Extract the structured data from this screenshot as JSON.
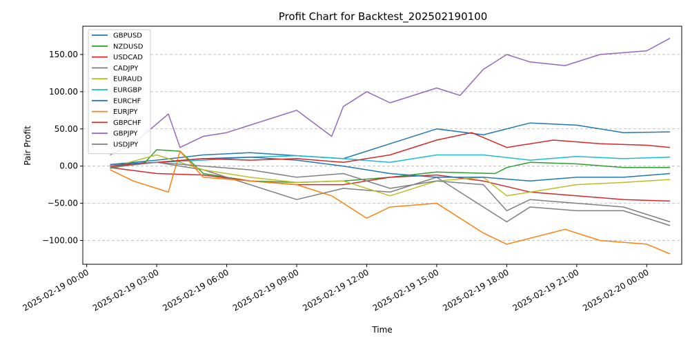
{
  "chart_data": {
    "type": "line",
    "title": "Profit Chart for Backtest_202502190100",
    "xlabel": "Time",
    "ylabel": "Pair Profit",
    "x_range": [
      "2025-02-18 23:50",
      "2025-02-20 01:30"
    ],
    "ylim": [
      -132,
      188
    ],
    "yticks": [
      -100,
      -50,
      0,
      50,
      100,
      150
    ],
    "ytick_labels": [
      "−100.00",
      "−50.00",
      "0.00",
      "50.00",
      "100.00",
      "150.00"
    ],
    "xticks": [
      "2025-02-19 00:00",
      "2025-02-19 03:00",
      "2025-02-19 06:00",
      "2025-02-19 09:00",
      "2025-02-19 12:00",
      "2025-02-19 15:00",
      "2025-02-19 18:00",
      "2025-02-19 21:00",
      "2025-02-20 00:00"
    ],
    "xtick_labels": [
      "2025-02-19 00:00",
      "2025-02-19 03:00",
      "2025-02-19 06:00",
      "2025-02-19 09:00",
      "2025-02-19 12:00",
      "2025-02-19 15:00",
      "2025-02-19 18:00",
      "2025-02-19 21:00",
      "2025-02-20 00:00"
    ],
    "grid": "y-dashed",
    "legend_position": "top-left",
    "series": [
      {
        "name": "GBPUSD",
        "color": "#1f77b4",
        "x": [
          "2025-02-19 01:00",
          "2025-02-19 03:00",
          "2025-02-19 05:00",
          "2025-02-19 07:00",
          "2025-02-19 09:00",
          "2025-02-19 11:00",
          "2025-02-19 13:00",
          "2025-02-19 15:00",
          "2025-02-19 17:00",
          "2025-02-19 19:00",
          "2025-02-19 21:00",
          "2025-02-19 23:00",
          "2025-02-20 01:00"
        ],
        "y": [
          2,
          8,
          15,
          18,
          14,
          10,
          30,
          50,
          42,
          58,
          55,
          45,
          46
        ]
      },
      {
        "name": "NZDUSD",
        "color": "#2ca02c",
        "x": [
          "2025-02-19 01:00",
          "2025-02-19 02:30",
          "2025-02-19 03:00",
          "2025-02-19 04:00",
          "2025-02-19 05:00",
          "2025-02-19 07:00",
          "2025-02-19 09:00",
          "2025-02-19 11:00",
          "2025-02-19 13:00",
          "2025-02-19 15:00",
          "2025-02-19 17:30",
          "2025-02-19 18:00",
          "2025-02-19 19:00",
          "2025-02-19 21:00",
          "2025-02-19 23:00",
          "2025-02-20 01:00"
        ],
        "y": [
          -3,
          5,
          22,
          20,
          -10,
          -20,
          -22,
          -20,
          -15,
          -8,
          -10,
          -2,
          5,
          3,
          -2,
          -2
        ]
      },
      {
        "name": "USDCAD",
        "color": "#d62728",
        "x": [
          "2025-02-19 01:00",
          "2025-02-19 03:00",
          "2025-02-19 05:00",
          "2025-02-19 07:00",
          "2025-02-19 09:00",
          "2025-02-19 11:00",
          "2025-02-19 13:00",
          "2025-02-19 15:00",
          "2025-02-19 17:00",
          "2025-02-19 19:00",
          "2025-02-19 21:00",
          "2025-02-19 23:00",
          "2025-02-20 01:00"
        ],
        "y": [
          -2,
          -10,
          -12,
          -20,
          -25,
          -25,
          -15,
          -12,
          -20,
          -35,
          -40,
          -45,
          -47
        ]
      },
      {
        "name": "CADJPY",
        "color": "#7f7f7f",
        "x": [
          "2025-02-19 01:00",
          "2025-02-19 03:00",
          "2025-02-19 05:00",
          "2025-02-19 07:00",
          "2025-02-19 09:00",
          "2025-02-19 11:00",
          "2025-02-19 13:00",
          "2025-02-19 15:00",
          "2025-02-19 17:00",
          "2025-02-19 18:00",
          "2025-02-19 19:00",
          "2025-02-19 21:00",
          "2025-02-19 23:00",
          "2025-02-20 01:00"
        ],
        "y": [
          0,
          5,
          -5,
          -25,
          -45,
          -30,
          -35,
          -15,
          -55,
          -75,
          -55,
          -60,
          -60,
          -80
        ]
      },
      {
        "name": "EURAUD",
        "color": "#bcbd22",
        "x": [
          "2025-02-19 01:00",
          "2025-02-19 03:00",
          "2025-02-19 05:00",
          "2025-02-19 07:00",
          "2025-02-19 09:00",
          "2025-02-19 11:00",
          "2025-02-19 13:00",
          "2025-02-19 15:00",
          "2025-02-19 17:00",
          "2025-02-19 18:00",
          "2025-02-19 19:00",
          "2025-02-19 21:00",
          "2025-02-19 23:00",
          "2025-02-20 01:00"
        ],
        "y": [
          -2,
          15,
          -5,
          -15,
          -22,
          -20,
          -40,
          -20,
          -15,
          -40,
          -35,
          -25,
          -22,
          -18
        ]
      },
      {
        "name": "EURGBP",
        "color": "#17becf",
        "x": [
          "2025-02-19 01:00",
          "2025-02-19 03:00",
          "2025-02-19 05:00",
          "2025-02-19 07:00",
          "2025-02-19 09:00",
          "2025-02-19 11:00",
          "2025-02-19 13:00",
          "2025-02-19 15:00",
          "2025-02-19 17:00",
          "2025-02-19 19:00",
          "2025-02-19 21:00",
          "2025-02-19 23:00",
          "2025-02-20 01:00"
        ],
        "y": [
          0,
          5,
          8,
          12,
          14,
          10,
          5,
          15,
          15,
          8,
          13,
          10,
          12
        ]
      },
      {
        "name": "EURCHF",
        "color": "#1f77b4",
        "x": [
          "2025-02-19 01:00",
          "2025-02-19 03:00",
          "2025-02-19 05:00",
          "2025-02-19 07:00",
          "2025-02-19 09:00",
          "2025-02-19 11:00",
          "2025-02-19 13:00",
          "2025-02-19 15:00",
          "2025-02-19 17:00",
          "2025-02-19 19:00",
          "2025-02-19 21:00",
          "2025-02-19 23:00",
          "2025-02-20 01:00"
        ],
        "y": [
          2,
          5,
          10,
          12,
          8,
          0,
          -10,
          -15,
          -15,
          -20,
          -15,
          -15,
          -10
        ]
      },
      {
        "name": "EURJPY",
        "color": "#ff7f0e",
        "x": [
          "2025-02-19 01:00",
          "2025-02-19 02:00",
          "2025-02-19 03:30",
          "2025-02-19 04:00",
          "2025-02-19 05:00",
          "2025-02-19 07:00",
          "2025-02-19 09:00",
          "2025-02-19 10:30",
          "2025-02-19 12:00",
          "2025-02-19 13:00",
          "2025-02-19 15:00",
          "2025-02-19 17:00",
          "2025-02-19 18:00",
          "2025-02-19 20:30",
          "2025-02-19 22:00",
          "2025-02-20 00:00",
          "2025-02-20 01:00"
        ],
        "y": [
          -5,
          -20,
          -35,
          20,
          -15,
          -20,
          -25,
          -40,
          -70,
          -55,
          -50,
          -90,
          -105,
          -85,
          -100,
          -105,
          -118
        ]
      },
      {
        "name": "GBPCHF",
        "color": "#d62728",
        "x": [
          "2025-02-19 01:00",
          "2025-02-19 03:00",
          "2025-02-19 05:00",
          "2025-02-19 07:00",
          "2025-02-19 09:00",
          "2025-02-19 11:00",
          "2025-02-19 13:00",
          "2025-02-19 15:00",
          "2025-02-19 16:30",
          "2025-02-19 18:00",
          "2025-02-19 20:00",
          "2025-02-19 22:00",
          "2025-02-20 00:00",
          "2025-02-20 01:00"
        ],
        "y": [
          0,
          5,
          10,
          8,
          10,
          5,
          15,
          35,
          45,
          25,
          35,
          30,
          28,
          25
        ]
      },
      {
        "name": "GBPJPY",
        "color": "#9467bd",
        "x": [
          "2025-02-19 01:00",
          "2025-02-19 02:00",
          "2025-02-19 03:30",
          "2025-02-19 04:00",
          "2025-02-19 05:00",
          "2025-02-19 06:00",
          "2025-02-19 07:00",
          "2025-02-19 09:00",
          "2025-02-19 10:30",
          "2025-02-19 11:00",
          "2025-02-19 12:00",
          "2025-02-19 13:00",
          "2025-02-19 15:00",
          "2025-02-19 16:00",
          "2025-02-19 17:00",
          "2025-02-19 18:00",
          "2025-02-19 19:00",
          "2025-02-19 20:30",
          "2025-02-19 22:00",
          "2025-02-20 00:00",
          "2025-02-20 01:00"
        ],
        "y": [
          15,
          30,
          70,
          25,
          40,
          45,
          55,
          75,
          40,
          80,
          100,
          85,
          105,
          95,
          130,
          150,
          140,
          135,
          150,
          155,
          172
        ]
      },
      {
        "name": "USDJPY",
        "color": "#7f7f7f",
        "x": [
          "2025-02-19 01:00",
          "2025-02-19 03:00",
          "2025-02-19 05:00",
          "2025-02-19 07:00",
          "2025-02-19 09:00",
          "2025-02-19 11:00",
          "2025-02-19 13:00",
          "2025-02-19 15:00",
          "2025-02-19 17:00",
          "2025-02-19 18:00",
          "2025-02-19 19:00",
          "2025-02-19 21:00",
          "2025-02-19 23:00",
          "2025-02-20 01:00"
        ],
        "y": [
          -2,
          5,
          0,
          -5,
          -15,
          -10,
          -30,
          -20,
          -25,
          -60,
          -45,
          -50,
          -55,
          -75
        ]
      }
    ]
  }
}
